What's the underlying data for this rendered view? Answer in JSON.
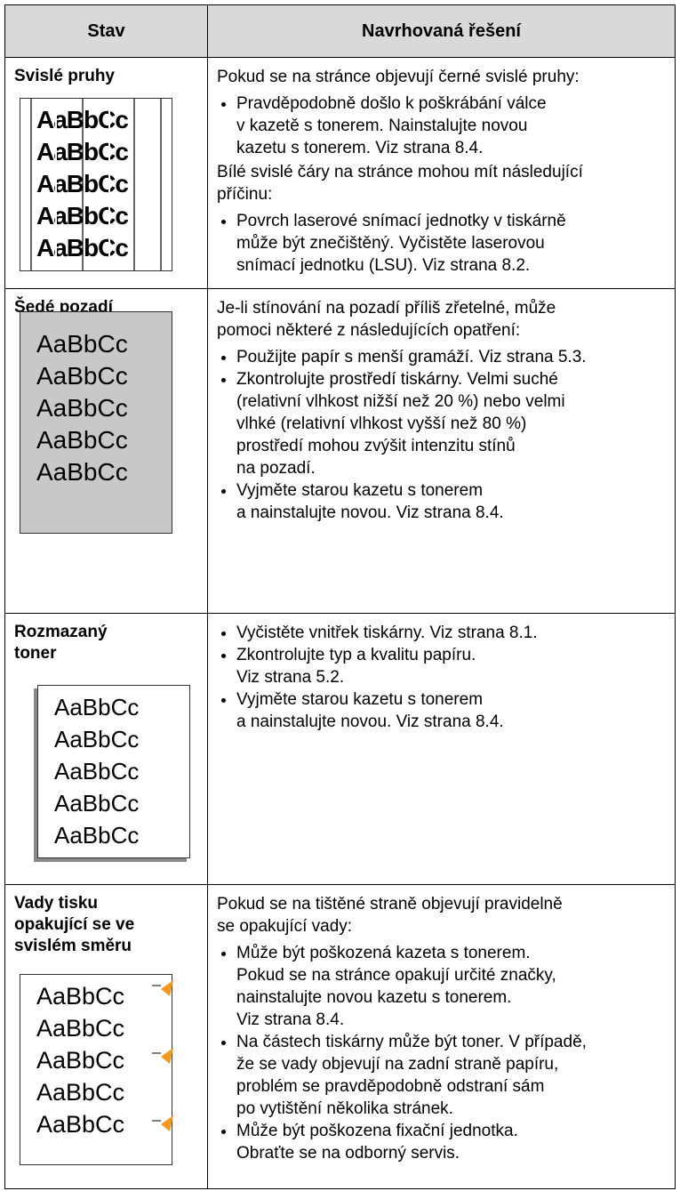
{
  "header": [
    "Stav",
    "Navrhovaná řešení"
  ],
  "rows": [
    {
      "condition": [
        "Svislé pruhy"
      ],
      "sample": [
        "AaBbCc",
        "AaBbCc",
        "AaBbCc",
        "AaBbCc",
        "AaBbCc"
      ],
      "solution": [
        {
          "type": "p",
          "lines": [
            "Pokud se na stránce objevují černé svislé pruhy:"
          ]
        },
        {
          "type": "bullet",
          "lines": [
            "Pravděpodobně došlo k poškrábání válce",
            "v kazetě s tonerem. Nainstalujte novou",
            "kazetu s tonerem. Viz strana 8.4."
          ]
        },
        {
          "type": "p",
          "lines": [
            "Bílé svislé čáry na stránce mohou mít následující",
            "příčinu:"
          ]
        },
        {
          "type": "bullet",
          "lines": [
            "Povrch laserové snímací jednotky v tiskárně",
            "může být znečištěný. Vyčistěte laserovou",
            "snímací jednotku (LSU). Viz strana 8.2."
          ]
        }
      ]
    },
    {
      "condition": [
        "Šedé pozadí"
      ],
      "sample": [
        "AaBbCc",
        "AaBbCc",
        "AaBbCc",
        "AaBbCc",
        "AaBbCc"
      ],
      "solution": [
        {
          "type": "p",
          "lines": [
            "Je-li stínování na pozadí příliš zřetelné, může",
            "pomoci některé z následujících opatření:"
          ]
        },
        {
          "type": "bullet",
          "lines": [
            "Použijte papír s menší gramáží. Viz strana 5.3."
          ]
        },
        {
          "type": "bullet",
          "lines": [
            "Zkontrolujte prostředí tiskárny. Velmi suché",
            "(relativní vlhkost nižší než 20 %) nebo velmi",
            "vlhké (relativní vlhkost vyšší než 80 %)",
            "prostředí mohou zvýšit intenzitu stínů",
            "na pozadí."
          ]
        },
        {
          "type": "bullet",
          "lines": [
            "Vyjměte starou kazetu s tonerem",
            "a nainstalujte novou. Viz strana 8.4."
          ]
        }
      ]
    },
    {
      "condition": [
        "Rozmazaný",
        "toner"
      ],
      "sample": [
        "AaBbCc",
        "AaBbCc",
        "AaBbCc",
        "AaBbCc",
        "AaBbCc"
      ],
      "solution": [
        {
          "type": "bullet",
          "lines": [
            "Vyčistěte vnitřek tiskárny. Viz strana 8.1."
          ]
        },
        {
          "type": "bullet",
          "lines": [
            "Zkontrolujte typ a kvalitu papíru.",
            "Viz strana 5.2."
          ]
        },
        {
          "type": "bullet",
          "lines": [
            "Vyjměte starou kazetu s tonerem",
            "a nainstalujte novou. Viz strana 8.4."
          ]
        }
      ]
    },
    {
      "condition": [
        "Vady tisku",
        "opakující se ve",
        "svislém směru"
      ],
      "sample": [
        "AaBbCc",
        "AaBbCc",
        "AaBbCc",
        "AaBbCc",
        "AaBbCc"
      ],
      "solution": [
        {
          "type": "p",
          "lines": [
            "Pokud se na tištěné straně objevují pravidelně",
            "se opakující vady:"
          ]
        },
        {
          "type": "bullet",
          "lines": [
            "Může být poškozená kazeta s tonerem.",
            "Pokud se na stránce opakují určité značky,",
            "nainstalujte novou kazetu s tonerem.",
            "Viz strana 8.4."
          ]
        },
        {
          "type": "bullet",
          "lines": [
            "Na částech tiskárny může být toner. V případě,",
            "že se vady objevují na zadní straně papíru,",
            "problém se pravděpodobně odstraní sám",
            "po vytištění několika stránek."
          ]
        },
        {
          "type": "bullet",
          "lines": [
            "Může být poškozena fixační jednotka.",
            "Obraťte se na odborný servis."
          ]
        }
      ]
    }
  ]
}
